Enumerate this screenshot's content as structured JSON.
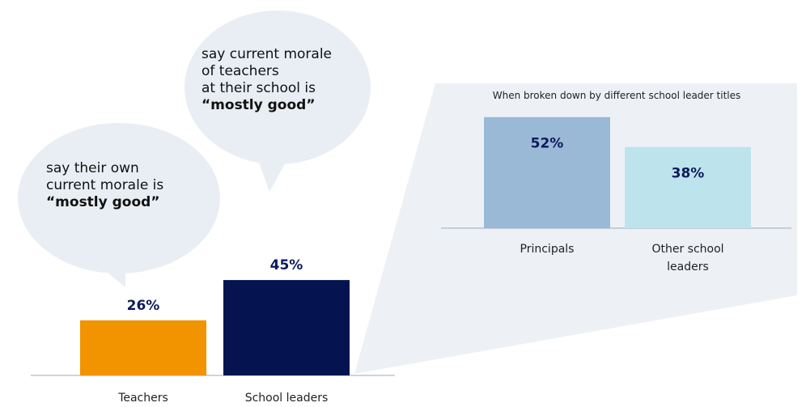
{
  "colors": {
    "teachers": "#f29400",
    "school_leaders": "#051450",
    "principals": "#9ab9d6",
    "other_leaders": "#bde3ec",
    "bubble": "#e9eef4",
    "panel": "#edf1f6",
    "axis": "#9aa9bd",
    "value_text": "#0d1a5c"
  },
  "bubbles": {
    "teachers": {
      "line1": "say their own",
      "line2": "current morale is",
      "emphasis": "“mostly good”"
    },
    "leaders": {
      "line1": "say current morale",
      "line2": "of teachers",
      "line3": "at their school is",
      "emphasis": "“mostly good”"
    }
  },
  "chart_data": [
    {
      "type": "bar",
      "categories": [
        "Teachers",
        "School leaders"
      ],
      "values": [
        26,
        45
      ],
      "value_labels": [
        "26%",
        "45%"
      ],
      "ylim": [
        0,
        100
      ]
    },
    {
      "type": "bar",
      "title": "When broken down by different school leader titles",
      "categories": [
        "Principals",
        "Other school leaders"
      ],
      "category_lines": [
        [
          "Principals"
        ],
        [
          "Other school",
          "leaders"
        ]
      ],
      "values": [
        52,
        38
      ],
      "value_labels": [
        "52%",
        "38%"
      ],
      "ylim": [
        0,
        100
      ]
    }
  ]
}
